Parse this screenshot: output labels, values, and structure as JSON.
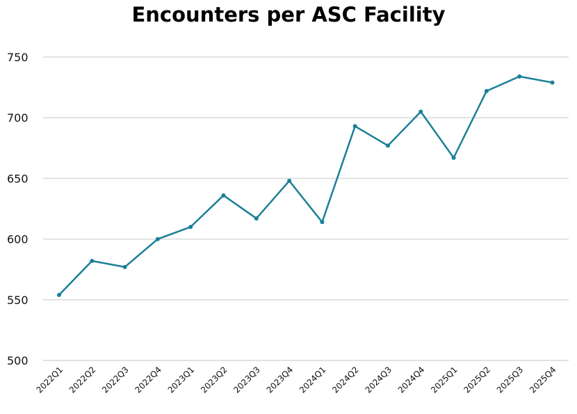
{
  "chart_data": {
    "type": "line",
    "title": "Encounters per ASC Facility",
    "xlabel": "",
    "ylabel": "",
    "categories": [
      "2022Q1",
      "2022Q2",
      "2022Q3",
      "2022Q4",
      "2023Q1",
      "2023Q2",
      "2023Q3",
      "2023Q4",
      "2024Q1",
      "2024Q2",
      "2024Q3",
      "2024Q4",
      "2025Q1",
      "2025Q2",
      "2025Q3",
      "2025Q4"
    ],
    "values": [
      554,
      582,
      577,
      600,
      610,
      636,
      617,
      648,
      614,
      693,
      677,
      705,
      667,
      722,
      734,
      729
    ],
    "ylim": [
      500,
      750
    ],
    "yticks": [
      500,
      550,
      600,
      650,
      700,
      750
    ],
    "grid": true,
    "line_color": "#1a7f98",
    "grid_color": "#d9d9d9"
  }
}
